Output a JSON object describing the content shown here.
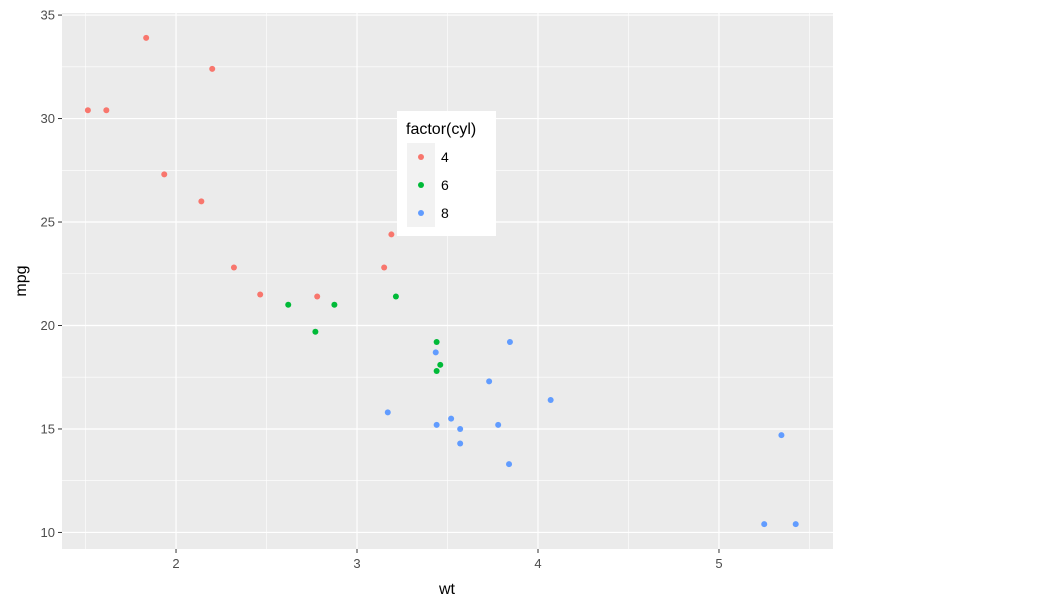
{
  "chart_data": {
    "type": "scatter",
    "xlabel": "wt",
    "ylabel": "mpg",
    "xlim": [
      1.37,
      5.63
    ],
    "ylim": [
      9.2,
      35.1
    ],
    "x_ticks": [
      2,
      3,
      4,
      5
    ],
    "y_ticks": [
      10,
      15,
      20,
      25,
      30,
      35
    ],
    "x_tick_labels": [
      "2",
      "3",
      "4",
      "5"
    ],
    "y_tick_labels": [
      "10",
      "15",
      "20",
      "25",
      "30",
      "35"
    ],
    "grid": true,
    "legend": {
      "title": "factor(cyl)",
      "placement": "inside-top-center"
    },
    "series": [
      {
        "name": "4",
        "color": "#F8766D",
        "points": [
          [
            1.513,
            30.4
          ],
          [
            1.615,
            30.4
          ],
          [
            1.835,
            33.9
          ],
          [
            1.935,
            27.3
          ],
          [
            2.14,
            26.0
          ],
          [
            2.2,
            32.4
          ],
          [
            2.32,
            22.8
          ],
          [
            2.465,
            21.5
          ],
          [
            2.78,
            21.4
          ],
          [
            3.15,
            22.8
          ],
          [
            3.19,
            24.4
          ]
        ]
      },
      {
        "name": "6",
        "color": "#00BA38",
        "points": [
          [
            2.62,
            21.0
          ],
          [
            2.77,
            19.7
          ],
          [
            2.875,
            21.0
          ],
          [
            3.215,
            21.4
          ],
          [
            3.44,
            19.2
          ],
          [
            3.44,
            17.8
          ],
          [
            3.46,
            18.1
          ]
        ]
      },
      {
        "name": "8",
        "color": "#619CFF",
        "points": [
          [
            3.17,
            15.8
          ],
          [
            3.435,
            18.7
          ],
          [
            3.44,
            15.2
          ],
          [
            3.52,
            15.5
          ],
          [
            3.57,
            15.0
          ],
          [
            3.57,
            14.3
          ],
          [
            3.73,
            17.3
          ],
          [
            3.78,
            15.2
          ],
          [
            3.84,
            13.3
          ],
          [
            3.845,
            19.2
          ],
          [
            4.07,
            16.4
          ],
          [
            5.25,
            10.4
          ],
          [
            5.345,
            14.7
          ],
          [
            5.424,
            10.4
          ]
        ]
      }
    ]
  }
}
